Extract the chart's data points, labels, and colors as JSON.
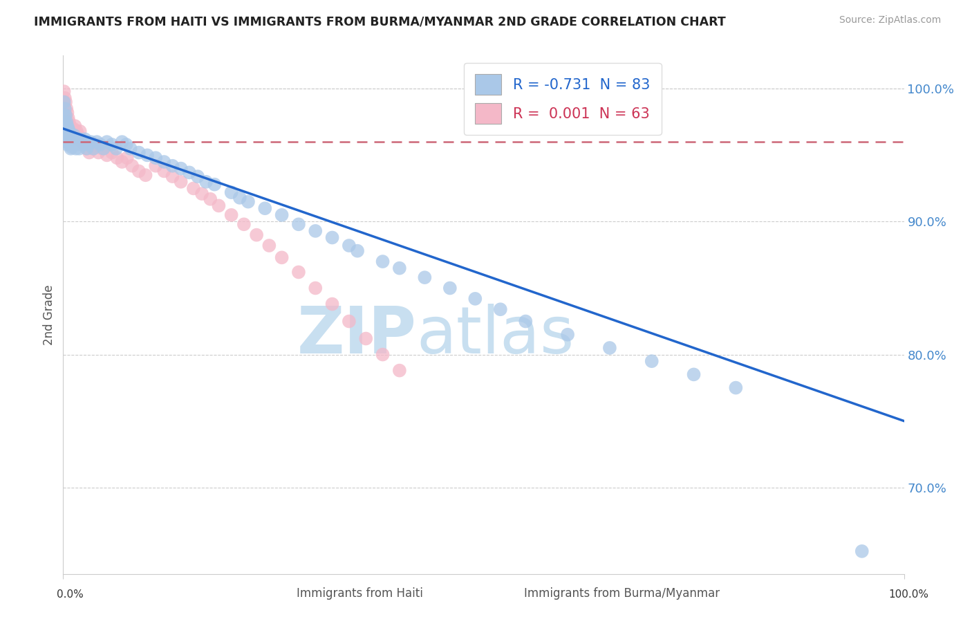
{
  "title": "IMMIGRANTS FROM HAITI VS IMMIGRANTS FROM BURMA/MYANMAR 2ND GRADE CORRELATION CHART",
  "source": "Source: ZipAtlas.com",
  "ylabel": "2nd Grade",
  "legend_haiti": "R = -0.731  N = 83",
  "legend_burma": "R =  0.001  N = 63",
  "haiti_color": "#aac8e8",
  "burma_color": "#f4b8c8",
  "haiti_line_color": "#2266cc",
  "burma_line_color": "#cc6677",
  "background_color": "#ffffff",
  "watermark_zip": "ZIP",
  "watermark_atlas": "atlas",
  "watermark_color_zip": "#c8dff0",
  "watermark_color_atlas": "#c8dff0",
  "xlim": [
    0.0,
    1.0
  ],
  "ylim": [
    0.635,
    1.025
  ],
  "yticks": [
    0.7,
    0.8,
    0.9,
    1.0
  ],
  "ytick_labels": [
    "70.0%",
    "80.0%",
    "90.0%",
    "100.0%"
  ],
  "haiti_line_x0": 0.0,
  "haiti_line_y0": 0.97,
  "haiti_line_x1": 1.0,
  "haiti_line_y1": 0.75,
  "burma_line_x0": 0.0,
  "burma_line_y0": 0.96,
  "burma_line_x1": 1.0,
  "burma_line_y1": 0.96,
  "haiti_scatter_x": [
    0.001,
    0.001,
    0.002,
    0.002,
    0.002,
    0.003,
    0.003,
    0.003,
    0.004,
    0.004,
    0.004,
    0.005,
    0.005,
    0.005,
    0.006,
    0.006,
    0.007,
    0.007,
    0.008,
    0.008,
    0.009,
    0.009,
    0.01,
    0.01,
    0.011,
    0.012,
    0.013,
    0.014,
    0.015,
    0.016,
    0.017,
    0.018,
    0.019,
    0.02,
    0.022,
    0.024,
    0.026,
    0.028,
    0.03,
    0.033,
    0.036,
    0.04,
    0.044,
    0.048,
    0.052,
    0.058,
    0.063,
    0.07,
    0.075,
    0.08,
    0.09,
    0.1,
    0.11,
    0.12,
    0.13,
    0.14,
    0.15,
    0.16,
    0.17,
    0.18,
    0.2,
    0.21,
    0.22,
    0.24,
    0.26,
    0.28,
    0.3,
    0.32,
    0.34,
    0.35,
    0.38,
    0.4,
    0.43,
    0.46,
    0.49,
    0.52,
    0.55,
    0.6,
    0.65,
    0.7,
    0.75,
    0.8,
    0.95
  ],
  "haiti_scatter_y": [
    0.99,
    0.98,
    0.985,
    0.975,
    0.97,
    0.98,
    0.972,
    0.965,
    0.975,
    0.968,
    0.96,
    0.972,
    0.965,
    0.958,
    0.97,
    0.963,
    0.968,
    0.96,
    0.965,
    0.958,
    0.962,
    0.955,
    0.963,
    0.956,
    0.96,
    0.958,
    0.965,
    0.96,
    0.955,
    0.962,
    0.958,
    0.96,
    0.955,
    0.962,
    0.96,
    0.958,
    0.962,
    0.955,
    0.958,
    0.96,
    0.955,
    0.96,
    0.958,
    0.955,
    0.96,
    0.958,
    0.955,
    0.96,
    0.958,
    0.955,
    0.952,
    0.95,
    0.948,
    0.945,
    0.942,
    0.94,
    0.937,
    0.934,
    0.93,
    0.928,
    0.922,
    0.918,
    0.915,
    0.91,
    0.905,
    0.898,
    0.893,
    0.888,
    0.882,
    0.878,
    0.87,
    0.865,
    0.858,
    0.85,
    0.842,
    0.834,
    0.825,
    0.815,
    0.805,
    0.795,
    0.785,
    0.775,
    0.652
  ],
  "burma_scatter_x": [
    0.001,
    0.001,
    0.002,
    0.002,
    0.003,
    0.003,
    0.004,
    0.004,
    0.005,
    0.005,
    0.006,
    0.006,
    0.007,
    0.007,
    0.008,
    0.008,
    0.009,
    0.01,
    0.011,
    0.012,
    0.013,
    0.014,
    0.015,
    0.016,
    0.017,
    0.018,
    0.02,
    0.022,
    0.025,
    0.028,
    0.031,
    0.035,
    0.038,
    0.042,
    0.046,
    0.052,
    0.058,
    0.064,
    0.07,
    0.076,
    0.082,
    0.09,
    0.098,
    0.11,
    0.12,
    0.13,
    0.14,
    0.155,
    0.165,
    0.175,
    0.185,
    0.2,
    0.215,
    0.23,
    0.245,
    0.26,
    0.28,
    0.3,
    0.32,
    0.34,
    0.36,
    0.38,
    0.4
  ],
  "burma_scatter_y": [
    0.998,
    0.988,
    0.993,
    0.983,
    0.99,
    0.98,
    0.985,
    0.975,
    0.982,
    0.972,
    0.978,
    0.968,
    0.975,
    0.965,
    0.972,
    0.962,
    0.97,
    0.968,
    0.965,
    0.97,
    0.968,
    0.972,
    0.965,
    0.968,
    0.962,
    0.965,
    0.968,
    0.96,
    0.958,
    0.955,
    0.952,
    0.955,
    0.958,
    0.952,
    0.955,
    0.95,
    0.952,
    0.948,
    0.945,
    0.948,
    0.942,
    0.938,
    0.935,
    0.942,
    0.938,
    0.934,
    0.93,
    0.925,
    0.921,
    0.917,
    0.912,
    0.905,
    0.898,
    0.89,
    0.882,
    0.873,
    0.862,
    0.85,
    0.838,
    0.825,
    0.812,
    0.8,
    0.788
  ]
}
